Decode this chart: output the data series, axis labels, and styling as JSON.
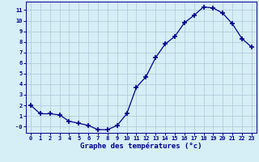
{
  "hours": [
    0,
    1,
    2,
    3,
    4,
    5,
    6,
    7,
    8,
    9,
    10,
    11,
    12,
    13,
    14,
    15,
    16,
    17,
    18,
    19,
    20,
    21,
    22,
    23
  ],
  "temps": [
    2.0,
    1.2,
    1.2,
    1.1,
    0.5,
    0.3,
    0.1,
    -0.3,
    -0.3,
    0.1,
    1.2,
    3.7,
    4.7,
    6.5,
    7.8,
    8.5,
    9.8,
    10.5,
    11.3,
    11.2,
    10.7,
    9.7,
    8.3,
    7.5
  ],
  "line_color": "#00008B",
  "marker_color": "#00008B",
  "bg_color": "#d6eef5",
  "grid_color": "#aac8d8",
  "xlabel": "Graphe des températures (°c)",
  "ylabel_ticks": [
    0,
    1,
    2,
    3,
    4,
    5,
    6,
    7,
    8,
    9,
    10,
    11
  ],
  "xlim": [
    -0.5,
    23.5
  ],
  "ylim": [
    -0.6,
    11.8
  ],
  "axis_label_color": "#00008B",
  "tick_label_color": "#00008B"
}
